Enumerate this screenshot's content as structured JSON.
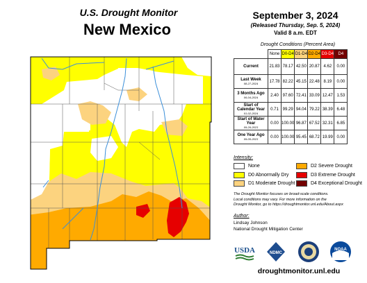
{
  "header": {
    "program": "U.S. Drought Monitor",
    "state": "New Mexico",
    "date": "September 3, 2024",
    "released": "(Released Thursday, Sep. 5, 2024)",
    "valid": "Valid 8 a.m. EDT"
  },
  "table": {
    "caption": "Drought Conditions (Percent Area)",
    "columns": [
      "None",
      "D0-D4",
      "D1-D4",
      "D2-D4",
      "D3-D4",
      "D4"
    ],
    "column_colors": [
      "#ffffff",
      "#ffff00",
      "#fcd37f",
      "#ffaa00",
      "#e60000",
      "#730000"
    ],
    "rows": [
      {
        "label": "Current",
        "sub": "",
        "values": [
          "21.83",
          "78.17",
          "42.50",
          "20.87",
          "4.62",
          "0.00"
        ]
      },
      {
        "label": "Last Week",
        "sub": "08-27-2024",
        "values": [
          "17.78",
          "82.22",
          "45.15",
          "22.48",
          "8.19",
          "0.00"
        ]
      },
      {
        "label": "3 Months Ago",
        "sub": "06-04-2024",
        "values": [
          "2.40",
          "97.60",
          "72.41",
          "33.09",
          "12.47",
          "1.53"
        ]
      },
      {
        "label": "Start of Calendar Year",
        "sub": "01-02-2024",
        "values": [
          "0.71",
          "99.29",
          "94.04",
          "79.22",
          "38.39",
          "6.48"
        ]
      },
      {
        "label": "Start of Water Year",
        "sub": "09-26-2023",
        "values": [
          "0.00",
          "100.00",
          "96.87",
          "67.52",
          "32.31",
          "6.85"
        ]
      },
      {
        "label": "One Year Ago",
        "sub": "09-05-2023",
        "values": [
          "0.00",
          "100.00",
          "95.45",
          "68.72",
          "19.99",
          "0.00"
        ]
      }
    ]
  },
  "legend": {
    "title": "Intensity:",
    "items": [
      {
        "label": "None",
        "color": "#ffffff"
      },
      {
        "label": "D0 Abnormally Dry",
        "color": "#ffff00"
      },
      {
        "label": "D1 Moderate Drought",
        "color": "#fcd37f"
      },
      {
        "label": "D2 Severe Drought",
        "color": "#ffaa00"
      },
      {
        "label": "D3 Extreme Drought",
        "color": "#e60000"
      },
      {
        "label": "D4 Exceptional Drought",
        "color": "#730000"
      }
    ]
  },
  "note": {
    "line1": "The Drought Monitor focuses on broad-scale conditions.",
    "line2": "Local conditions may vary. For more information on the",
    "line3": "Drought Monitor, go to https://droughtmonitor.unl.edu/About.aspx"
  },
  "author": {
    "title": "Author:",
    "name": "Lindsay Johnson",
    "org": "National Drought Mitigation Center"
  },
  "logos": [
    "USDA",
    "NDMC",
    "Department of Commerce",
    "NOAA"
  ],
  "url": "droughtmonitor.unl.edu"
}
